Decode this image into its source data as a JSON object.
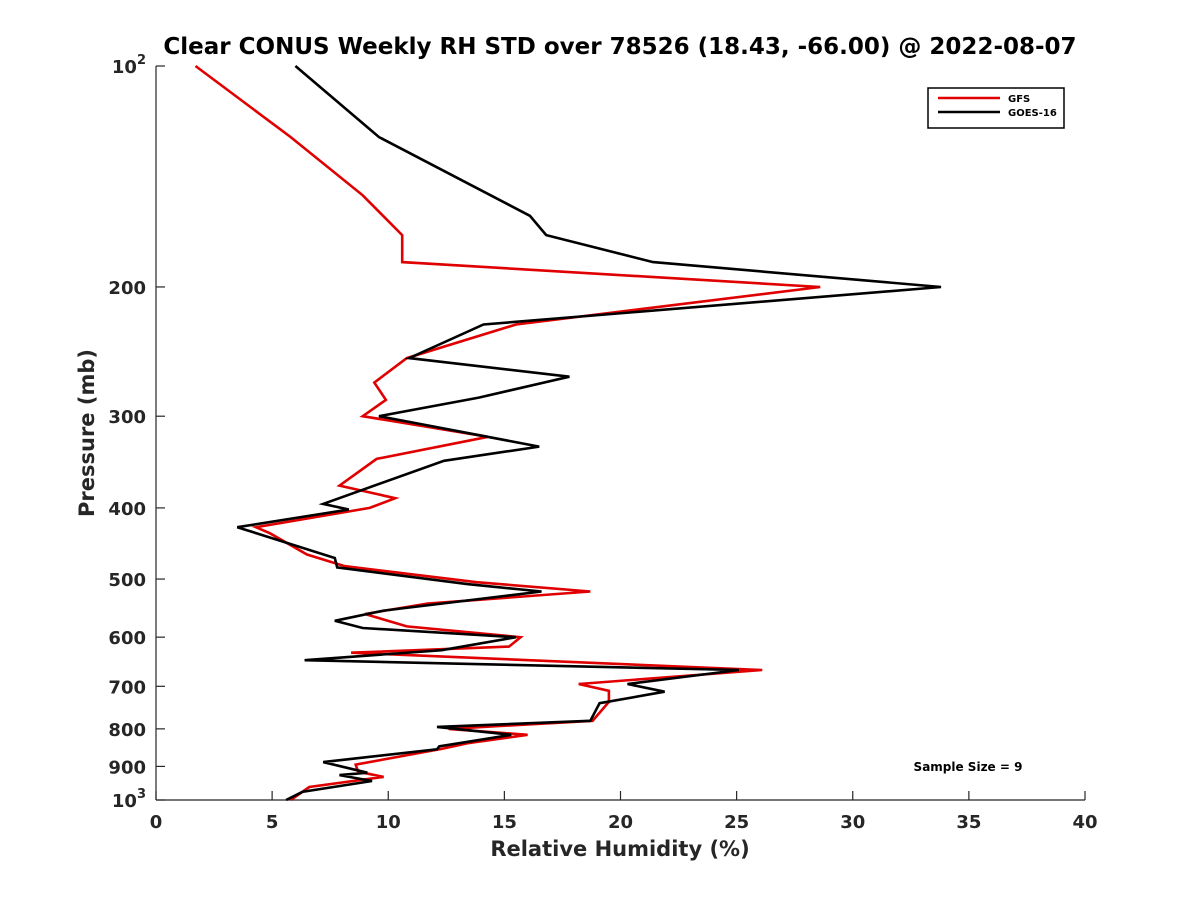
{
  "chart_data": {
    "type": "line",
    "title": "Clear CONUS Weekly RH STD over 78526 (18.43, -66.00) @ 2022-08-07",
    "xlabel": "Relative Humidity (%)",
    "ylabel": "Pressure (mb)",
    "xlim": [
      0,
      40
    ],
    "ylim": [
      100,
      1000
    ],
    "y_scale": "log",
    "y_reversed": true,
    "grid": false,
    "legend_position": "top-right",
    "x_ticks": [
      {
        "value": 0,
        "label": "0"
      },
      {
        "value": 5,
        "label": "5"
      },
      {
        "value": 10,
        "label": "10"
      },
      {
        "value": 15,
        "label": "15"
      },
      {
        "value": 20,
        "label": "20"
      },
      {
        "value": 25,
        "label": "25"
      },
      {
        "value": 30,
        "label": "30"
      },
      {
        "value": 35,
        "label": "35"
      },
      {
        "value": 40,
        "label": "40"
      }
    ],
    "y_ticks": [
      {
        "value": 100,
        "label": "10",
        "exp": "2"
      },
      {
        "value": 200,
        "label": "200"
      },
      {
        "value": 300,
        "label": "300"
      },
      {
        "value": 400,
        "label": "400"
      },
      {
        "value": 500,
        "label": "500"
      },
      {
        "value": 600,
        "label": "600"
      },
      {
        "value": 700,
        "label": "700"
      },
      {
        "value": 800,
        "label": "800"
      },
      {
        "value": 900,
        "label": "900"
      },
      {
        "value": 1000,
        "label": "10",
        "exp": "3"
      }
    ],
    "annotation": "Sample Size = 9",
    "series": [
      {
        "name": "GFS",
        "color": "#e00000",
        "points": [
          [
            1.7,
            100
          ],
          [
            5.8,
            125
          ],
          [
            8.9,
            150
          ],
          [
            10.6,
            170
          ],
          [
            10.6,
            185
          ],
          [
            28.6,
            200
          ],
          [
            15.5,
            225
          ],
          [
            10.8,
            250
          ],
          [
            9.4,
            270
          ],
          [
            9.9,
            285
          ],
          [
            8.9,
            300
          ],
          [
            14.3,
            320
          ],
          [
            9.5,
            343
          ],
          [
            7.9,
            373
          ],
          [
            10.3,
            388
          ],
          [
            9.2,
            400
          ],
          [
            4.3,
            425
          ],
          [
            4.9,
            433
          ],
          [
            6.5,
            463
          ],
          [
            8.1,
            480
          ],
          [
            13.8,
            505
          ],
          [
            18.7,
            520
          ],
          [
            11.7,
            540
          ],
          [
            9.0,
            558
          ],
          [
            10.8,
            580
          ],
          [
            15.7,
            600
          ],
          [
            15.2,
            618
          ],
          [
            8.4,
            630
          ],
          [
            26.1,
            665
          ],
          [
            18.2,
            695
          ],
          [
            19.5,
            710
          ],
          [
            19.5,
            735
          ],
          [
            18.8,
            780
          ],
          [
            12.6,
            800
          ],
          [
            16.0,
            815
          ],
          [
            13.5,
            836
          ],
          [
            12.3,
            852
          ],
          [
            8.6,
            895
          ],
          [
            8.7,
            915
          ],
          [
            9.8,
            930
          ],
          [
            6.6,
            960
          ],
          [
            5.8,
            1000
          ]
        ]
      },
      {
        "name": "GOES-16",
        "color": "#000000",
        "points": [
          [
            6.0,
            100
          ],
          [
            9.6,
            125
          ],
          [
            16.1,
            160
          ],
          [
            16.8,
            170
          ],
          [
            21.4,
            185
          ],
          [
            33.8,
            200
          ],
          [
            14.1,
            225
          ],
          [
            10.9,
            250
          ],
          [
            17.8,
            265
          ],
          [
            13.9,
            283
          ],
          [
            9.6,
            300
          ],
          [
            16.5,
            330
          ],
          [
            12.4,
            345
          ],
          [
            7.2,
            395
          ],
          [
            8.3,
            402
          ],
          [
            3.5,
            425
          ],
          [
            7.7,
            468
          ],
          [
            7.8,
            482
          ],
          [
            13.4,
            508
          ],
          [
            16.6,
            520
          ],
          [
            9.8,
            552
          ],
          [
            7.7,
            570
          ],
          [
            8.9,
            583
          ],
          [
            15.5,
            600
          ],
          [
            12.3,
            625
          ],
          [
            6.4,
            645
          ],
          [
            25.1,
            665
          ],
          [
            20.3,
            695
          ],
          [
            21.9,
            712
          ],
          [
            19.1,
            738
          ],
          [
            18.7,
            780
          ],
          [
            12.1,
            795
          ],
          [
            15.3,
            815
          ],
          [
            12.2,
            845
          ],
          [
            12.1,
            853
          ],
          [
            7.2,
            888
          ],
          [
            9.1,
            918
          ],
          [
            7.9,
            925
          ],
          [
            9.3,
            942
          ],
          [
            6.3,
            975
          ],
          [
            5.6,
            1000
          ]
        ]
      }
    ]
  }
}
